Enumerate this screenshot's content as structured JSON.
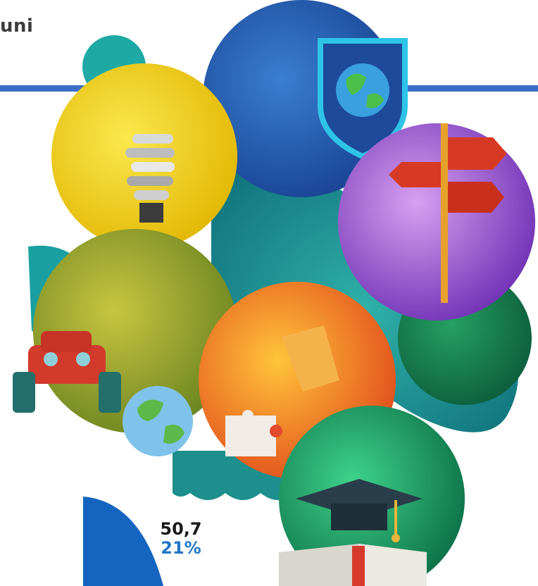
{
  "header": {
    "title_fragment": "uni"
  },
  "stat": {
    "value": "50,7",
    "percent": "21%"
  },
  "illustration": {
    "icons": [
      "globe-shield-icon",
      "lightbulb-icon",
      "signpost-icon",
      "car-icon",
      "globe-puzzle-icon",
      "puzzle-piece-icon",
      "graduation-cap-icon",
      "book-icon"
    ]
  },
  "colors": {
    "divider": "#3b6fc7",
    "pie_blue": "#1565c0",
    "accent_blue": "#1f77c8"
  }
}
